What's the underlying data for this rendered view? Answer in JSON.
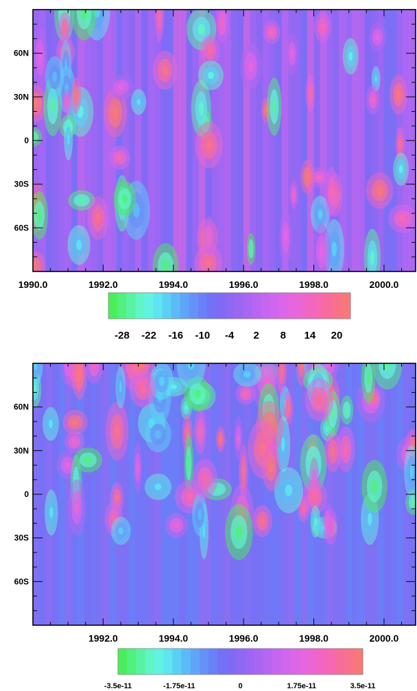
{
  "chart_data": [
    {
      "type": "heatmap",
      "title": "",
      "xlabel": "",
      "ylabel": "",
      "x_axis": {
        "type": "time",
        "range": [
          1990.0,
          2000.9
        ],
        "tick_labels": [
          "1990.0",
          "1992.0",
          "1994.0",
          "1996.0",
          "1998.0",
          "2000.0"
        ],
        "tick_values": [
          1990.0,
          1992.0,
          1994.0,
          1996.0,
          1998.0,
          2000.0
        ]
      },
      "y_axis": {
        "type": "latitude",
        "range": [
          -90,
          90
        ],
        "tick_labels": [
          "60N",
          "30N",
          "0",
          "30S",
          "60S"
        ],
        "tick_values": [
          60,
          30,
          0,
          -30,
          -60
        ]
      },
      "colorbar": {
        "tick_labels": [
          "-28",
          "-22",
          "-16",
          "-10",
          "-4",
          "2",
          "8",
          "14",
          "20"
        ],
        "range": [
          -31,
          23
        ],
        "colors": [
          "#4aee5a",
          "#52f07e",
          "#58f3a2",
          "#5ff5c6",
          "#62f2e2",
          "#5ee4f2",
          "#5bd0f5",
          "#5cbaf7",
          "#5fa5f8",
          "#6592f8",
          "#6a80f8",
          "#7272f6",
          "#7e6af4",
          "#8c68f3",
          "#9a66f2",
          "#a866f2",
          "#b766f2",
          "#c566f1",
          "#d066ee",
          "#db66e8",
          "#e566df",
          "#ec66d2",
          "#f266c2",
          "#f668b0",
          "#f86c9c",
          "#f8728a",
          "#f8787a"
        ]
      },
      "grid": false,
      "legend": "colorbar-bottom"
    },
    {
      "type": "heatmap",
      "title": "",
      "xlabel": "",
      "ylabel": "",
      "x_axis": {
        "type": "time",
        "range": [
          1990.0,
          2000.9
        ],
        "tick_labels": [
          "1992.0",
          "1994.0",
          "1996.0",
          "1998.0",
          "2000.0"
        ],
        "tick_values": [
          1992.0,
          1994.0,
          1996.0,
          1998.0,
          2000.0
        ]
      },
      "y_axis": {
        "type": "latitude",
        "range": [
          -90,
          90
        ],
        "tick_labels": [
          "60N",
          "30N",
          "0",
          "30S",
          "60S"
        ],
        "tick_values": [
          60,
          30,
          0,
          -30,
          -60
        ]
      },
      "colorbar": {
        "tick_labels": [
          "-3.5e-11",
          "-1.75e-11",
          "0",
          "1.75e-11",
          "3.5e-11"
        ],
        "range": [
          -3.5e-11,
          3.5e-11
        ],
        "colors": [
          "#4aee5a",
          "#52f07e",
          "#58f3a2",
          "#5ff5c6",
          "#62f2e2",
          "#5ee4f2",
          "#5bd0f5",
          "#5cbaf7",
          "#5fa5f8",
          "#6592f8",
          "#6a80f8",
          "#7272f6",
          "#7e6af4",
          "#8c68f3",
          "#9a66f2",
          "#a866f2",
          "#b766f2",
          "#c566f1",
          "#d066ee",
          "#db66e8",
          "#e566df",
          "#ec66d2",
          "#f266c2",
          "#f668b0",
          "#f86c9c",
          "#f8728a",
          "#f8787a"
        ]
      },
      "grid": false,
      "legend": "colorbar-bottom"
    }
  ]
}
